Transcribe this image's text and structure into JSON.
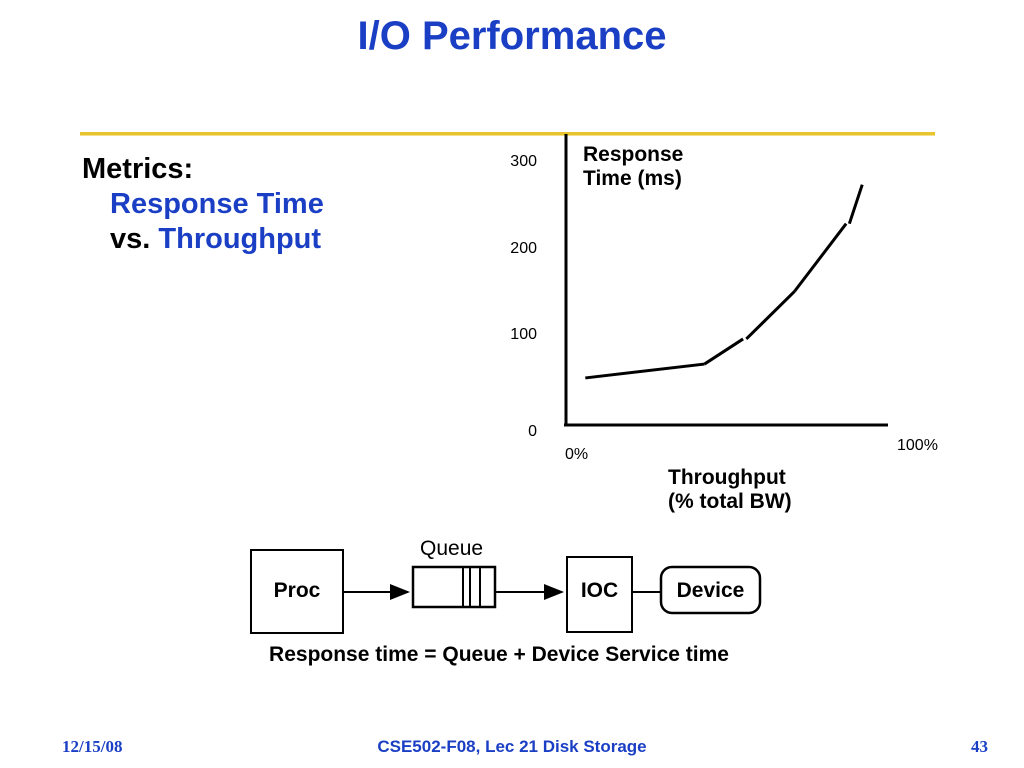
{
  "slide": {
    "title": "I/O Performance",
    "metrics_label": "Metrics:",
    "metrics_line2": "Response Time",
    "metrics_vs": "vs.",
    "metrics_line3": "Throughput",
    "formula": "Response time = Queue + Device Service time",
    "footer": {
      "date": "12/15/08",
      "course": "CSE502-F08, Lec 21 Disk Storage",
      "page": "43"
    },
    "colors": {
      "title": "#1a3fc4",
      "rule": "#e8c52e"
    }
  },
  "chart_data": {
    "type": "line",
    "ylabel": "Response\nTime (ms)",
    "xlabel": "Throughput\n(% total BW)",
    "y_ticks": [
      "0",
      "100",
      "200",
      "300"
    ],
    "x_ticks": [
      "0%",
      "100%"
    ],
    "ylim": [
      0,
      300
    ],
    "xlim": [
      0,
      100
    ],
    "grid": false,
    "segments": [
      [
        [
          6,
          52
        ],
        [
          43,
          68
        ]
      ],
      [
        [
          43,
          68
        ],
        [
          55,
          97
        ]
      ],
      [
        [
          56,
          97
        ],
        [
          71,
          152
        ]
      ],
      [
        [
          71,
          152
        ],
        [
          87,
          230
        ]
      ],
      [
        [
          88,
          230
        ],
        [
          92,
          275
        ]
      ]
    ]
  },
  "diagram": {
    "proc": "Proc",
    "queue": "Queue",
    "ioc": "IOC",
    "device": "Device"
  }
}
